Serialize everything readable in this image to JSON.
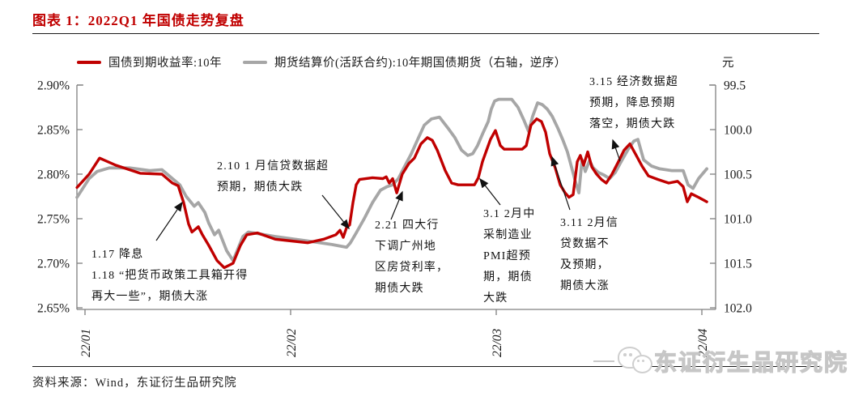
{
  "header": {
    "title": "图表 1：2022Q1 年国债走势复盘"
  },
  "legend": {
    "series1": "国债到期收益率:10年",
    "series2": "期货结算价(活跃合约):10年期国债期货（右轴，逆序）",
    "unit": "元"
  },
  "footer": {
    "source": "资料来源：Wind，东证衍生品研究院"
  },
  "watermark": {
    "text": "东证衍生品研究院"
  },
  "chart_data": {
    "type": "line",
    "title": "2022Q1 年国债走势复盘",
    "x_axis": {
      "ticks": [
        "22/01",
        "22/02",
        "22/03",
        "22/04"
      ],
      "note": "x stored as months after 22/01 tick"
    },
    "y_left": {
      "ticks": [
        "2.90%",
        "2.85%",
        "2.80%",
        "2.75%",
        "2.70%",
        "2.65%"
      ],
      "max": 2.9,
      "min": 2.65
    },
    "y_right": {
      "ticks": [
        "99.5",
        "100.0",
        "100.5",
        "101.0",
        "101.5",
        "102.0"
      ],
      "min": 99.5,
      "max": 102.0,
      "inverted": true,
      "unit": "元"
    },
    "grid": false,
    "legend_position": "top",
    "series": [
      {
        "name": "国债到期收益率:10年",
        "axis": "left",
        "color": "#c00000",
        "points": [
          [
            -0.039,
            2.785
          ],
          [
            0.02,
            2.8
          ],
          [
            0.071,
            2.818
          ],
          [
            0.15,
            2.81
          ],
          [
            0.268,
            2.801
          ],
          [
            0.374,
            2.8
          ],
          [
            0.425,
            2.79
          ],
          [
            0.453,
            2.787
          ],
          [
            0.48,
            2.768
          ],
          [
            0.504,
            2.744
          ],
          [
            0.52,
            2.735
          ],
          [
            0.551,
            2.741
          ],
          [
            0.571,
            2.732
          ],
          [
            0.602,
            2.72
          ],
          [
            0.642,
            2.703
          ],
          [
            0.677,
            2.695
          ],
          [
            0.72,
            2.7
          ],
          [
            0.756,
            2.72
          ],
          [
            0.787,
            2.732
          ],
          [
            0.839,
            2.734
          ],
          [
            0.925,
            2.727
          ],
          [
            1.004,
            2.725
          ],
          [
            1.083,
            2.723
          ],
          [
            1.161,
            2.727
          ],
          [
            1.22,
            2.732
          ],
          [
            1.24,
            2.737
          ],
          [
            1.256,
            2.729
          ],
          [
            1.272,
            2.74
          ],
          [
            1.287,
            2.743
          ],
          [
            1.303,
            2.768
          ],
          [
            1.319,
            2.788
          ],
          [
            1.335,
            2.794
          ],
          [
            1.398,
            2.796
          ],
          [
            1.449,
            2.795
          ],
          [
            1.465,
            2.797
          ],
          [
            1.48,
            2.79
          ],
          [
            1.496,
            2.795
          ],
          [
            1.516,
            2.779
          ],
          [
            1.543,
            2.8
          ],
          [
            1.575,
            2.812
          ],
          [
            1.602,
            2.818
          ],
          [
            1.634,
            2.834
          ],
          [
            1.665,
            2.841
          ],
          [
            1.689,
            2.838
          ],
          [
            1.713,
            2.827
          ],
          [
            1.752,
            2.804
          ],
          [
            1.783,
            2.79
          ],
          [
            1.815,
            2.788
          ],
          [
            1.894,
            2.788
          ],
          [
            1.913,
            2.796
          ],
          [
            1.933,
            2.814
          ],
          [
            1.953,
            2.827
          ],
          [
            1.972,
            2.839
          ],
          [
            1.996,
            2.849
          ],
          [
            2.02,
            2.832
          ],
          [
            2.039,
            2.828
          ],
          [
            2.126,
            2.828
          ],
          [
            2.146,
            2.832
          ],
          [
            2.169,
            2.855
          ],
          [
            2.197,
            2.862
          ],
          [
            2.22,
            2.859
          ],
          [
            2.24,
            2.847
          ],
          [
            2.26,
            2.823
          ],
          [
            2.287,
            2.807
          ],
          [
            2.311,
            2.788
          ],
          [
            2.335,
            2.779
          ],
          [
            2.354,
            2.774
          ],
          [
            2.374,
            2.777
          ],
          [
            2.394,
            2.814
          ],
          [
            2.409,
            2.821
          ],
          [
            2.425,
            2.81
          ],
          [
            2.445,
            2.825
          ],
          [
            2.465,
            2.808
          ],
          [
            2.488,
            2.8
          ],
          [
            2.512,
            2.794
          ],
          [
            2.535,
            2.79
          ],
          [
            2.563,
            2.8
          ],
          [
            2.594,
            2.814
          ],
          [
            2.622,
            2.827
          ],
          [
            2.65,
            2.834
          ],
          [
            2.681,
            2.821
          ],
          [
            2.709,
            2.809
          ],
          [
            2.74,
            2.798
          ],
          [
            2.787,
            2.794
          ],
          [
            2.839,
            2.79
          ],
          [
            2.882,
            2.792
          ],
          [
            2.909,
            2.786
          ],
          [
            2.929,
            2.769
          ],
          [
            2.949,
            2.778
          ],
          [
            2.984,
            2.774
          ],
          [
            3.024,
            2.769
          ]
        ]
      },
      {
        "name": "期货结算价(活跃合约):10年期国债期货",
        "axis": "right",
        "color": "#a6a6a6",
        "points": [
          [
            -0.039,
            100.76
          ],
          [
            0.02,
            100.55
          ],
          [
            0.059,
            100.47
          ],
          [
            0.118,
            100.43
          ],
          [
            0.217,
            100.43
          ],
          [
            0.315,
            100.46
          ],
          [
            0.374,
            100.45
          ],
          [
            0.461,
            100.62
          ],
          [
            0.492,
            100.75
          ],
          [
            0.531,
            100.86
          ],
          [
            0.551,
            100.82
          ],
          [
            0.583,
            100.93
          ],
          [
            0.602,
            101.05
          ],
          [
            0.63,
            101.18
          ],
          [
            0.65,
            101.13
          ],
          [
            0.689,
            101.36
          ],
          [
            0.72,
            101.47
          ],
          [
            0.768,
            101.2
          ],
          [
            0.795,
            101.15
          ],
          [
            0.925,
            101.2
          ],
          [
            1.083,
            101.25
          ],
          [
            1.201,
            101.29
          ],
          [
            1.272,
            101.32
          ],
          [
            1.291,
            101.27
          ],
          [
            1.319,
            101.16
          ],
          [
            1.358,
            101.0
          ],
          [
            1.398,
            100.82
          ],
          [
            1.437,
            100.68
          ],
          [
            1.469,
            100.64
          ],
          [
            1.496,
            100.62
          ],
          [
            1.524,
            100.55
          ],
          [
            1.555,
            100.41
          ],
          [
            1.587,
            100.27
          ],
          [
            1.618,
            100.11
          ],
          [
            1.65,
            99.95
          ],
          [
            1.685,
            99.88
          ],
          [
            1.724,
            99.86
          ],
          [
            1.764,
            99.98
          ],
          [
            1.799,
            100.09
          ],
          [
            1.831,
            100.23
          ],
          [
            1.862,
            100.29
          ],
          [
            1.886,
            100.27
          ],
          [
            1.909,
            100.18
          ],
          [
            1.937,
            100.03
          ],
          [
            1.961,
            99.91
          ],
          [
            1.976,
            99.77
          ],
          [
            1.992,
            99.68
          ],
          [
            2.012,
            99.66
          ],
          [
            2.075,
            99.66
          ],
          [
            2.106,
            99.75
          ],
          [
            2.134,
            99.89
          ],
          [
            2.157,
            100.02
          ],
          [
            2.177,
            99.85
          ],
          [
            2.201,
            99.7
          ],
          [
            2.224,
            99.72
          ],
          [
            2.248,
            99.77
          ],
          [
            2.272,
            99.85
          ],
          [
            2.299,
            99.98
          ],
          [
            2.323,
            100.11
          ],
          [
            2.346,
            100.25
          ],
          [
            2.366,
            100.42
          ],
          [
            2.386,
            100.59
          ],
          [
            2.402,
            100.71
          ],
          [
            2.417,
            100.34
          ],
          [
            2.433,
            100.47
          ],
          [
            2.453,
            100.35
          ],
          [
            2.472,
            100.43
          ],
          [
            2.496,
            100.48
          ],
          [
            2.524,
            100.51
          ],
          [
            2.551,
            100.55
          ],
          [
            2.579,
            100.48
          ],
          [
            2.61,
            100.35
          ],
          [
            2.642,
            100.22
          ],
          [
            2.669,
            100.13
          ],
          [
            2.689,
            100.11
          ],
          [
            2.717,
            100.34
          ],
          [
            2.756,
            100.41
          ],
          [
            2.795,
            100.44
          ],
          [
            2.854,
            100.46
          ],
          [
            2.909,
            100.46
          ],
          [
            2.933,
            100.62
          ],
          [
            2.957,
            100.66
          ],
          [
            2.984,
            100.55
          ],
          [
            3.024,
            100.44
          ]
        ]
      }
    ],
    "annotations": [
      {
        "text": "1.17 降息\n1.18 “把货币政策工具箱开得\n再大一些”，期债大涨"
      },
      {
        "text": "2.10 1 月信贷数据超\n预期，期债大跌"
      },
      {
        "text": "2.21 四大行\n下调广州地\n区房贷利率，\n期债大跌"
      },
      {
        "text": "3.1 2月中\n采制造业\nPMI超预\n期，期债\n大跌"
      },
      {
        "text": "3.11 2月信\n贷数据不\n及预期，\n期债大涨"
      },
      {
        "text": "3.15 经济数据超\n预期，降息预期\n落空，期债大跌"
      }
    ]
  }
}
